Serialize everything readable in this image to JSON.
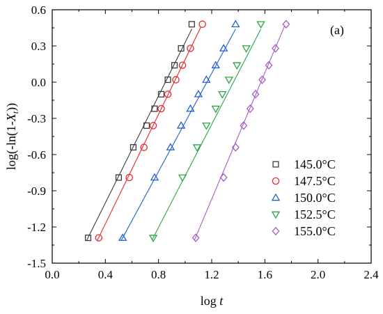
{
  "chart_data": {
    "type": "scatter",
    "panel_label": "(a)",
    "xlabel_main": "log ",
    "xlabel_var": "t",
    "ylabel_pre": "log(-ln(1-",
    "ylabel_var": "X",
    "ylabel_sub": "t",
    "ylabel_post": "))",
    "xlim": [
      0.0,
      2.4
    ],
    "ylim": [
      -1.5,
      0.6
    ],
    "xticks": [
      0.0,
      0.4,
      0.8,
      1.2,
      1.6,
      2.0,
      2.4
    ],
    "xtick_labels": [
      "0.0",
      "0.4",
      "0.8",
      "1.2",
      "1.6",
      "2.0",
      "2.4"
    ],
    "yticks": [
      -1.5,
      -1.2,
      -0.9,
      -0.6,
      -0.3,
      0.0,
      0.3,
      0.6
    ],
    "ytick_labels": [
      "-1.5",
      "-1.2",
      "-0.9",
      "-0.6",
      "-0.3",
      "0.0",
      "0.3",
      "0.6"
    ],
    "grid": false,
    "legend_position": "right",
    "series": [
      {
        "name": "145.0°C",
        "marker": "square",
        "color": "#3a3a3a",
        "x": [
          0.27,
          0.5,
          0.61,
          0.71,
          0.77,
          0.82,
          0.87,
          0.92,
          0.97,
          1.05
        ],
        "y": [
          -1.29,
          -0.79,
          -0.54,
          -0.36,
          -0.22,
          -0.1,
          0.02,
          0.14,
          0.28,
          0.48
        ],
        "fit": [
          [
            0.26,
            -1.31
          ],
          [
            1.05,
            0.44
          ]
        ]
      },
      {
        "name": "147.5°C",
        "marker": "circle",
        "color": "#e8262a",
        "x": [
          0.35,
          0.58,
          0.69,
          0.76,
          0.82,
          0.87,
          0.93,
          0.98,
          1.04,
          1.13
        ],
        "y": [
          -1.29,
          -0.79,
          -0.54,
          -0.36,
          -0.22,
          -0.1,
          0.02,
          0.14,
          0.28,
          0.48
        ],
        "fit": [
          [
            0.34,
            -1.31
          ],
          [
            1.12,
            0.46
          ]
        ]
      },
      {
        "name": "150.0°C",
        "marker": "triangle-up",
        "color": "#1f5fd0",
        "x": [
          0.53,
          0.77,
          0.89,
          0.97,
          1.04,
          1.1,
          1.16,
          1.23,
          1.29,
          1.38
        ],
        "y": [
          -1.29,
          -0.79,
          -0.54,
          -0.36,
          -0.22,
          -0.1,
          0.02,
          0.14,
          0.28,
          0.48
        ],
        "fit": [
          [
            0.52,
            -1.31
          ],
          [
            1.38,
            0.44
          ]
        ]
      },
      {
        "name": "152.5°C",
        "marker": "triangle-down",
        "color": "#27a545",
        "x": [
          0.76,
          0.98,
          1.09,
          1.16,
          1.23,
          1.28,
          1.33,
          1.39,
          1.46,
          1.57
        ],
        "y": [
          -1.29,
          -0.79,
          -0.54,
          -0.36,
          -0.22,
          -0.1,
          0.02,
          0.14,
          0.28,
          0.48
        ],
        "fit": [
          [
            0.75,
            -1.31
          ],
          [
            1.57,
            0.44
          ]
        ]
      },
      {
        "name": "155.0°C",
        "marker": "diamond",
        "color": "#a55ac7",
        "x": [
          1.08,
          1.29,
          1.38,
          1.44,
          1.49,
          1.53,
          1.58,
          1.63,
          1.68,
          1.76
        ],
        "y": [
          -1.29,
          -0.79,
          -0.54,
          -0.36,
          -0.22,
          -0.1,
          0.02,
          0.14,
          0.28,
          0.48
        ],
        "fit": [
          [
            1.07,
            -1.31
          ],
          [
            1.75,
            0.47
          ]
        ]
      }
    ]
  }
}
